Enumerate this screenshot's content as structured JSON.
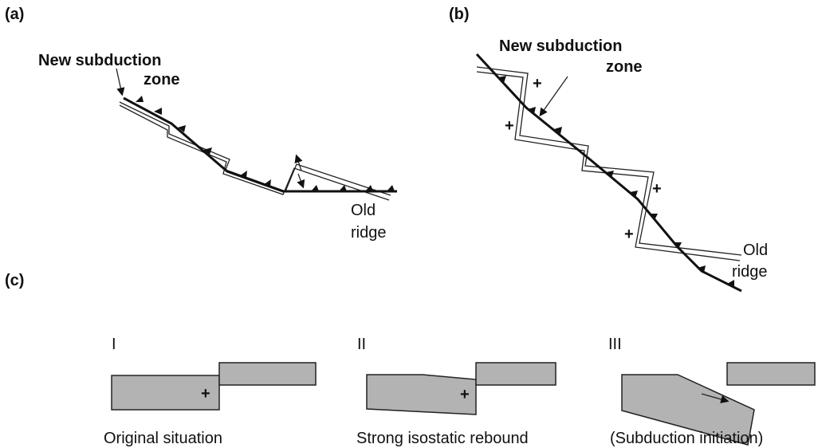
{
  "panel_a": {
    "label": "(a)",
    "title_line1": "New subduction",
    "title_line2": "zone",
    "ridge_line1": "Old",
    "ridge_line2": "ridge"
  },
  "panel_b": {
    "label": "(b)",
    "title_line1": "New subduction",
    "title_line2": "zone",
    "ridge_line1": "Old",
    "ridge_line2": "ridge",
    "plus": "+"
  },
  "panel_c": {
    "label": "(c)",
    "plus": "+",
    "stages": [
      {
        "numeral": "I",
        "caption": "Original situation"
      },
      {
        "numeral": "II",
        "caption": "Strong isostatic rebound"
      },
      {
        "numeral": "III",
        "caption": "(Subduction initiation)"
      }
    ]
  }
}
